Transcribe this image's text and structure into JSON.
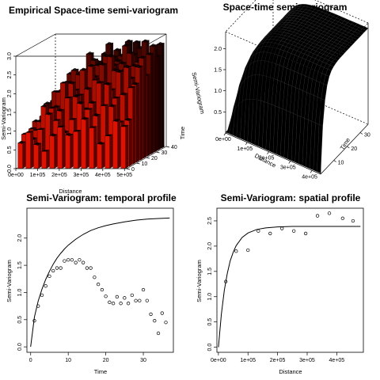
{
  "chart_data": [
    {
      "type": "bar",
      "title": "Empirical Space-time semi-variogram",
      "xlabel": "Distance",
      "ylabel": "Semi-Variogram",
      "zlabel": "Time",
      "distance_ticks": [
        "0e+00",
        "1e+05",
        "2e+05",
        "3e+05",
        "4e+05",
        "5e+05"
      ],
      "time_ticks": [
        "0",
        "10",
        "20",
        "30",
        "40"
      ],
      "gamma_ticks": [
        "0.0",
        "0.5",
        "1.0",
        "1.5",
        "2.0",
        "2.5",
        "3.0"
      ],
      "ylim": [
        0,
        3
      ],
      "distance_bins": 14,
      "time_bins": 11,
      "colors": {
        "bar": "#dd1100",
        "dark": "#220000"
      }
    },
    {
      "type": "area",
      "title": "Space-time semi-variogram",
      "xlabel": "Distance",
      "ylabel": "Semi-Variogram",
      "zlabel": "Time",
      "distance_ticks": [
        "0e+00",
        "1e+05",
        "2e+05",
        "3e+05",
        "4e+05"
      ],
      "time_ticks": [
        "10",
        "20",
        "30"
      ],
      "gamma_ticks": [
        "0.5",
        "1.0",
        "1.5",
        "2.0"
      ],
      "ylim": [
        0,
        2.4
      ]
    },
    {
      "type": "scatter",
      "title": "Semi-Variogram: temporal profile",
      "xlabel": "Time",
      "ylabel": "Semi-Variogram",
      "xlim": [
        -1,
        38
      ],
      "ylim": [
        -0.1,
        2.55
      ],
      "xticks": [
        0,
        10,
        20,
        30
      ],
      "xtick_labels": [
        "0",
        "10",
        "20",
        "30"
      ],
      "yticks": [
        0,
        0.5,
        1,
        1.5,
        2
      ],
      "ytick_labels": [
        "0.0",
        "0.5",
        "1.0",
        "1.5",
        "2.0"
      ],
      "points": {
        "x": [
          1,
          2,
          3,
          4,
          5,
          6,
          7,
          8,
          9,
          10,
          11,
          12,
          13,
          14,
          15,
          16,
          17,
          18,
          19,
          20,
          21,
          22,
          23,
          24,
          25,
          26,
          27,
          28,
          29,
          30,
          31,
          32,
          33,
          34,
          35,
          36
        ],
        "y": [
          0.48,
          0.75,
          0.95,
          1.12,
          1.3,
          1.4,
          1.45,
          1.45,
          1.58,
          1.6,
          1.6,
          1.55,
          1.6,
          1.55,
          1.45,
          1.45,
          1.28,
          1.15,
          1.05,
          0.93,
          0.82,
          0.8,
          0.92,
          0.8,
          0.9,
          0.8,
          0.95,
          0.85,
          0.85,
          1.05,
          0.85,
          0.6,
          0.48,
          0.25,
          0.62,
          0.45
        ]
      },
      "model": {
        "x": [
          0,
          1,
          2,
          3,
          4,
          5,
          6,
          7,
          8,
          9,
          10,
          12,
          14,
          16,
          18,
          20,
          22,
          25,
          28,
          31,
          34,
          37
        ],
        "y": [
          0.0,
          0.55,
          0.84,
          1.06,
          1.24,
          1.39,
          1.52,
          1.63,
          1.72,
          1.8,
          1.87,
          1.98,
          2.07,
          2.14,
          2.19,
          2.23,
          2.26,
          2.3,
          2.33,
          2.35,
          2.36,
          2.37
        ]
      }
    },
    {
      "type": "scatter",
      "title": "Semi-Variogram: spatial profile",
      "xlabel": "Distance",
      "ylabel": "Semi-Variogram",
      "xlim": [
        -5000,
        490000
      ],
      "ylim": [
        -0.1,
        2.75
      ],
      "xticks": [
        0,
        100000,
        200000,
        300000,
        400000
      ],
      "xtick_labels": [
        "0e+00",
        "1e+05",
        "2e+05",
        "3e+05",
        "4e+05"
      ],
      "yticks": [
        0,
        0.5,
        1,
        1.5,
        2,
        2.5
      ],
      "ytick_labels": [
        "0.0",
        "0.5",
        "1.0",
        "1.5",
        "2.0",
        "2.5"
      ],
      "points": {
        "x": [
          25000,
          60000,
          100000,
          135000,
          175000,
          215000,
          255000,
          295000,
          335000,
          375000,
          420000,
          455000
        ],
        "y": [
          1.3,
          1.9,
          1.92,
          2.3,
          2.25,
          2.35,
          2.3,
          2.25,
          2.6,
          2.65,
          2.55,
          2.5
        ]
      },
      "model": {
        "x": [
          0,
          10000,
          20000,
          30000,
          40000,
          50000,
          60000,
          80000,
          100000,
          130000,
          160000,
          200000,
          250000,
          300000,
          350000,
          400000,
          480000
        ],
        "y": [
          0.0,
          0.65,
          1.12,
          1.46,
          1.71,
          1.88,
          2.01,
          2.17,
          2.26,
          2.33,
          2.36,
          2.38,
          2.39,
          2.39,
          2.39,
          2.39,
          2.39
        ]
      }
    }
  ]
}
